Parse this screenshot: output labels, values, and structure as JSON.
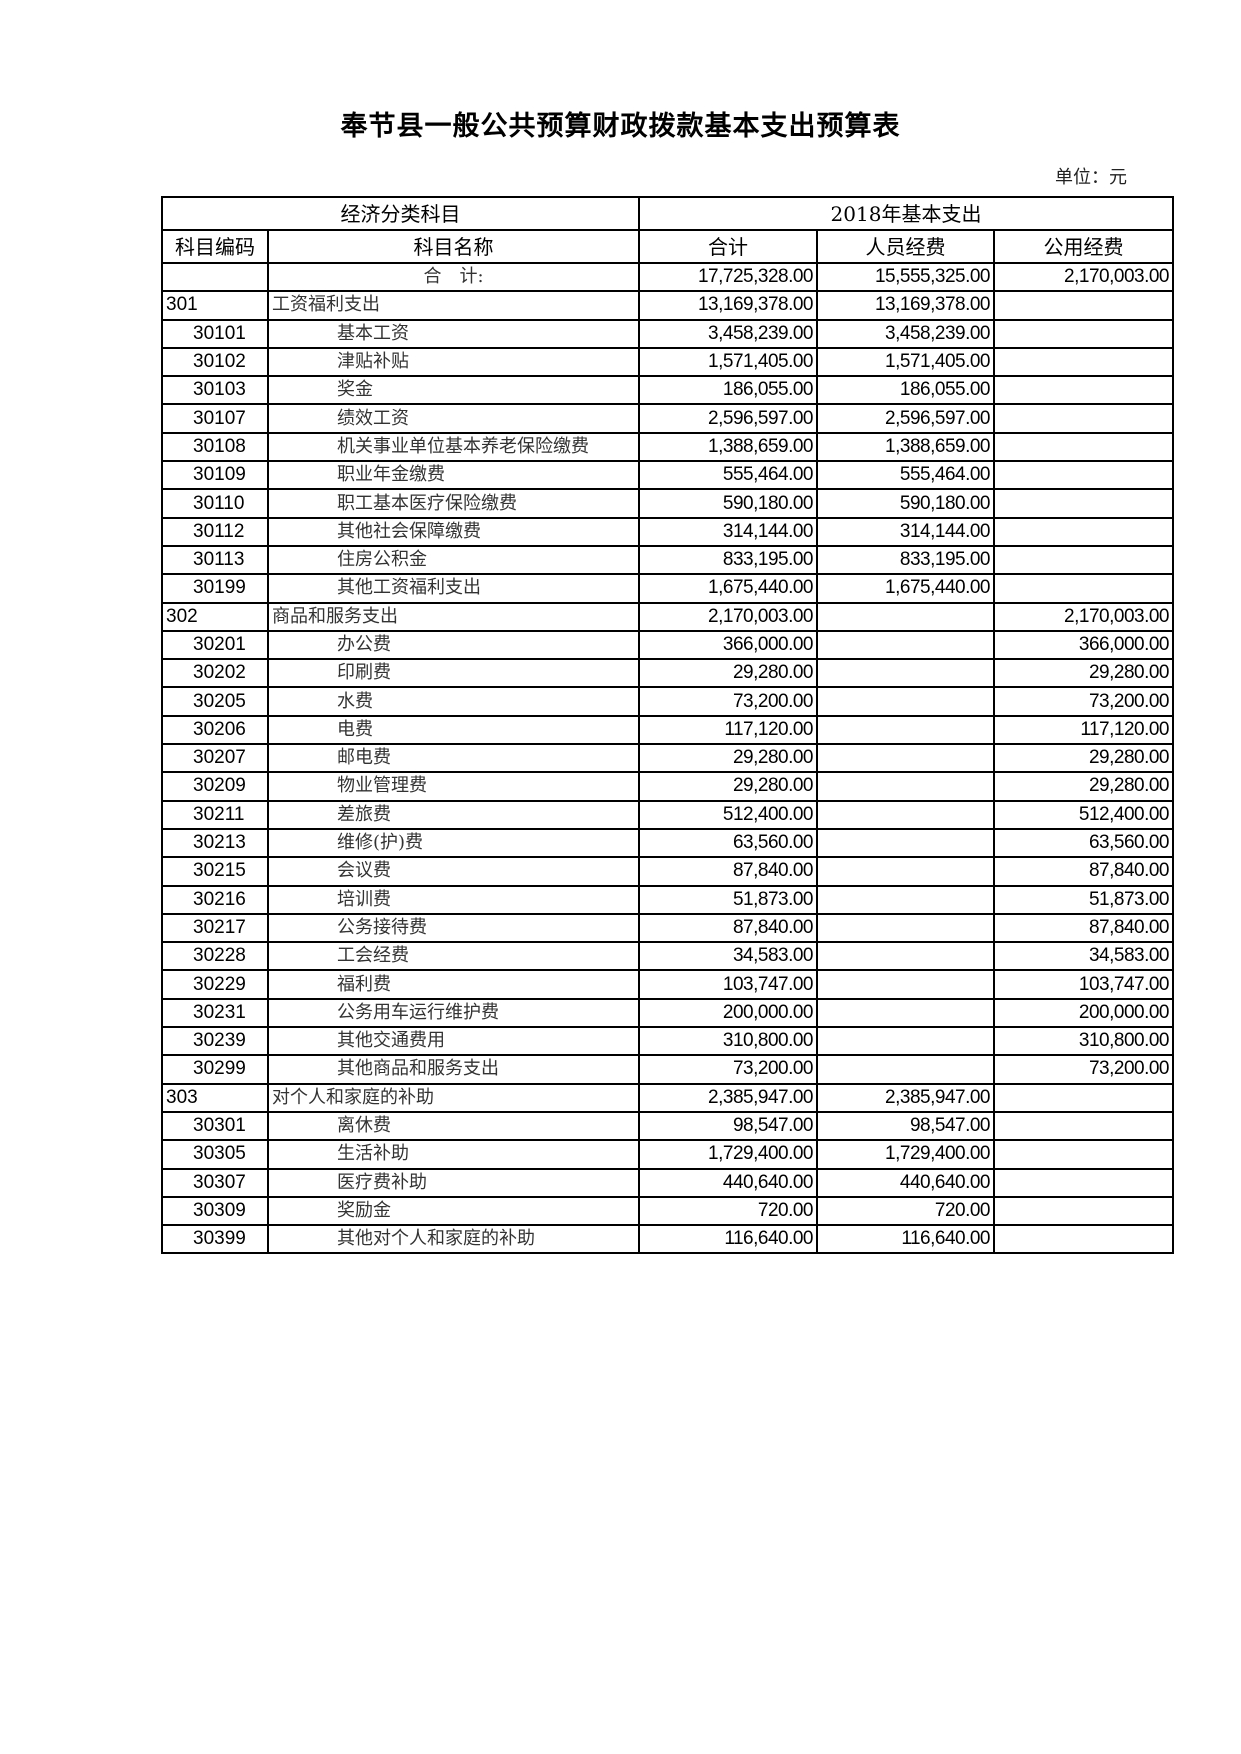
{
  "title": "奉节县一般公共预算财政拨款基本支出预算表",
  "unit": "单位：元",
  "header": {
    "group1": "经济分类科目",
    "group2": "2018年基本支出",
    "code": "科目编码",
    "name": "科目名称",
    "total": "合计",
    "personnel": "人员经费",
    "public": "公用经费"
  },
  "rows": [
    {
      "code": "",
      "name": "合　计:",
      "total": "17,725,328.00",
      "personnel": "15,555,325.00",
      "public": "2,170,003.00",
      "level": 0
    },
    {
      "code": "301",
      "name": "工资福利支出",
      "total": "13,169,378.00",
      "personnel": "13,169,378.00",
      "public": "",
      "level": 1
    },
    {
      "code": "30101",
      "name": "基本工资",
      "total": "3,458,239.00",
      "personnel": "3,458,239.00",
      "public": "",
      "level": 2
    },
    {
      "code": "30102",
      "name": "津贴补贴",
      "total": "1,571,405.00",
      "personnel": "1,571,405.00",
      "public": "",
      "level": 2
    },
    {
      "code": "30103",
      "name": "奖金",
      "total": "186,055.00",
      "personnel": "186,055.00",
      "public": "",
      "level": 2
    },
    {
      "code": "30107",
      "name": "绩效工资",
      "total": "2,596,597.00",
      "personnel": "2,596,597.00",
      "public": "",
      "level": 2
    },
    {
      "code": "30108",
      "name": "机关事业单位基本养老保险缴费",
      "total": "1,388,659.00",
      "personnel": "1,388,659.00",
      "public": "",
      "level": 2
    },
    {
      "code": "30109",
      "name": "职业年金缴费",
      "total": "555,464.00",
      "personnel": "555,464.00",
      "public": "",
      "level": 2
    },
    {
      "code": "30110",
      "name": "职工基本医疗保险缴费",
      "total": "590,180.00",
      "personnel": "590,180.00",
      "public": "",
      "level": 2
    },
    {
      "code": "30112",
      "name": "其他社会保障缴费",
      "total": "314,144.00",
      "personnel": "314,144.00",
      "public": "",
      "level": 2
    },
    {
      "code": "30113",
      "name": "住房公积金",
      "total": "833,195.00",
      "personnel": "833,195.00",
      "public": "",
      "level": 2
    },
    {
      "code": "30199",
      "name": "其他工资福利支出",
      "total": "1,675,440.00",
      "personnel": "1,675,440.00",
      "public": "",
      "level": 2
    },
    {
      "code": "302",
      "name": "商品和服务支出",
      "total": "2,170,003.00",
      "personnel": "",
      "public": "2,170,003.00",
      "level": 1
    },
    {
      "code": "30201",
      "name": "办公费",
      "total": "366,000.00",
      "personnel": "",
      "public": "366,000.00",
      "level": 2
    },
    {
      "code": "30202",
      "name": "印刷费",
      "total": "29,280.00",
      "personnel": "",
      "public": "29,280.00",
      "level": 2
    },
    {
      "code": "30205",
      "name": "水费",
      "total": "73,200.00",
      "personnel": "",
      "public": "73,200.00",
      "level": 2
    },
    {
      "code": "30206",
      "name": "电费",
      "total": "117,120.00",
      "personnel": "",
      "public": "117,120.00",
      "level": 2
    },
    {
      "code": "30207",
      "name": "邮电费",
      "total": "29,280.00",
      "personnel": "",
      "public": "29,280.00",
      "level": 2
    },
    {
      "code": "30209",
      "name": "物业管理费",
      "total": "29,280.00",
      "personnel": "",
      "public": "29,280.00",
      "level": 2
    },
    {
      "code": "30211",
      "name": "差旅费",
      "total": "512,400.00",
      "personnel": "",
      "public": "512,400.00",
      "level": 2
    },
    {
      "code": "30213",
      "name": "维修(护)费",
      "total": "63,560.00",
      "personnel": "",
      "public": "63,560.00",
      "level": 2
    },
    {
      "code": "30215",
      "name": "会议费",
      "total": "87,840.00",
      "personnel": "",
      "public": "87,840.00",
      "level": 2
    },
    {
      "code": "30216",
      "name": "培训费",
      "total": "51,873.00",
      "personnel": "",
      "public": "51,873.00",
      "level": 2
    },
    {
      "code": "30217",
      "name": "公务接待费",
      "total": "87,840.00",
      "personnel": "",
      "public": "87,840.00",
      "level": 2
    },
    {
      "code": "30228",
      "name": "工会经费",
      "total": "34,583.00",
      "personnel": "",
      "public": "34,583.00",
      "level": 2
    },
    {
      "code": "30229",
      "name": "福利费",
      "total": "103,747.00",
      "personnel": "",
      "public": "103,747.00",
      "level": 2
    },
    {
      "code": "30231",
      "name": "公务用车运行维护费",
      "total": "200,000.00",
      "personnel": "",
      "public": "200,000.00",
      "level": 2
    },
    {
      "code": "30239",
      "name": "其他交通费用",
      "total": "310,800.00",
      "personnel": "",
      "public": "310,800.00",
      "level": 2
    },
    {
      "code": "30299",
      "name": "其他商品和服务支出",
      "total": "73,200.00",
      "personnel": "",
      "public": "73,200.00",
      "level": 2
    },
    {
      "code": "303",
      "name": "对个人和家庭的补助",
      "total": "2,385,947.00",
      "personnel": "2,385,947.00",
      "public": "",
      "level": 1
    },
    {
      "code": "30301",
      "name": "离休费",
      "total": "98,547.00",
      "personnel": "98,547.00",
      "public": "",
      "level": 2
    },
    {
      "code": "30305",
      "name": "生活补助",
      "total": "1,729,400.00",
      "personnel": "1,729,400.00",
      "public": "",
      "level": 2
    },
    {
      "code": "30307",
      "name": "医疗费补助",
      "total": "440,640.00",
      "personnel": "440,640.00",
      "public": "",
      "level": 2
    },
    {
      "code": "30309",
      "name": "奖励金",
      "total": "720.00",
      "personnel": "720.00",
      "public": "",
      "level": 2
    },
    {
      "code": "30399",
      "name": "其他对个人和家庭的补助",
      "total": "116,640.00",
      "personnel": "116,640.00",
      "public": "",
      "level": 2
    }
  ]
}
